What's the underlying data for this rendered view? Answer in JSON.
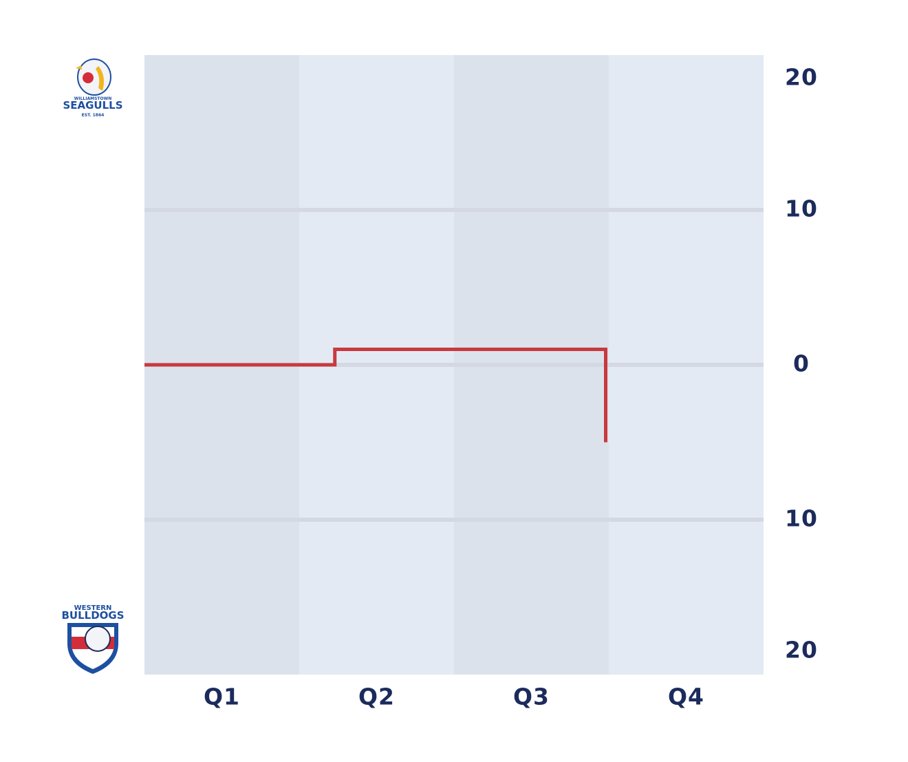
{
  "chart_data": {
    "type": "line",
    "categories": [
      "Q1",
      "Q2",
      "Q3",
      "Q4"
    ],
    "xlim": [
      0,
      4
    ],
    "ylim": [
      -20,
      20
    ],
    "yticks": [
      {
        "value": -20,
        "label": "20"
      },
      {
        "value": -10,
        "label": "10"
      },
      0,
      10,
      20
    ],
    "grid": true,
    "band_colors": [
      "#dce2ec",
      "#e4eaf3"
    ],
    "series": [
      {
        "color": "#c8393e",
        "x": [
          0,
          1.23,
          1.23,
          2.98,
          2.98
        ],
        "values": [
          0,
          0,
          1,
          1,
          -5
        ]
      }
    ],
    "teams": {
      "top": {
        "upper": "WILLIAMSTOWN",
        "name": "SEAGULLS",
        "lower": "EST. 1864"
      },
      "bottom": {
        "upper": "WESTERN",
        "name": "BULLDOGS"
      }
    }
  }
}
